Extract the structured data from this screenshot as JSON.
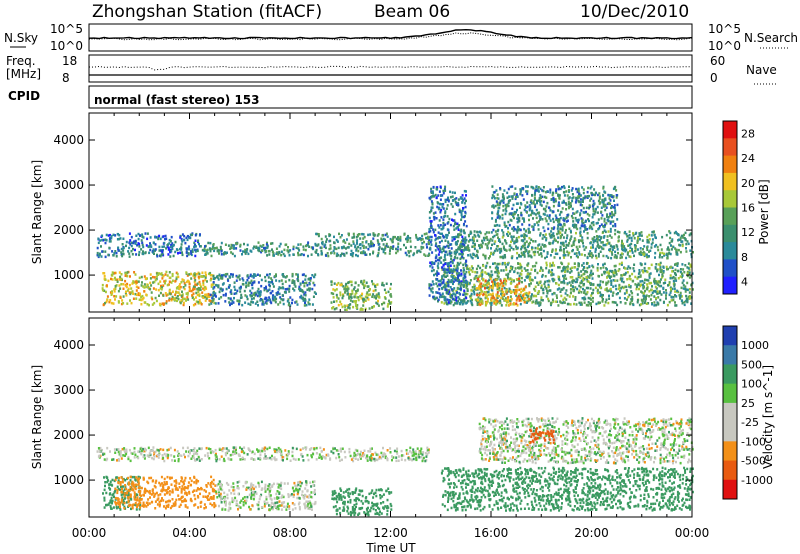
{
  "header": {
    "title": "Zhongshan Station (fitACF)",
    "beam": "Beam 06",
    "date": "10/Dec/2010"
  },
  "noise_panel": {
    "left_label": "N.Sky",
    "right_label": "N.Search",
    "y_ticks": [
      "10^5",
      "10^0"
    ]
  },
  "freq_panel": {
    "left_label_line1": "Freq.",
    "left_label_line2": "[MHz]",
    "left_ticks": [
      "18",
      "8"
    ],
    "right_label": "Nave",
    "right_ticks": [
      "60",
      "0"
    ]
  },
  "cpid_panel": {
    "label": "CPID",
    "mode_text": "normal (fast stereo) 153"
  },
  "colors": {
    "power": [
      "#2020ff",
      "#2050c8",
      "#2a8a9a",
      "#3b8f6e",
      "#58a058",
      "#a8c838",
      "#f0c020",
      "#f08010",
      "#e85020",
      "#e01010"
    ],
    "velocity": [
      "#e01010",
      "#e85a10",
      "#f39018",
      "#c8c8c0",
      "#c8c8c0",
      "#58c040",
      "#3a9a60",
      "#3a7aa8",
      "#2040b0"
    ]
  },
  "chart_data": [
    {
      "type": "heatmap",
      "name": "power",
      "ylabel": "Slant Range [km]",
      "xlabel": "",
      "x_ticks": [
        "00:00",
        "04:00",
        "08:00",
        "12:00",
        "16:00",
        "20:00",
        "00:00"
      ],
      "y_ticks": [
        1000,
        2000,
        3000,
        4000
      ],
      "xlim_hours": [
        0,
        24
      ],
      "ylim_km": [
        180,
        4600
      ],
      "colorbar": {
        "label": "Power [dB]",
        "ticks": [
          "28",
          "24",
          "20",
          "16",
          "12",
          "8",
          "4"
        ],
        "range": [
          0,
          30
        ]
      },
      "scatter_regions": [
        {
          "t0": 0.3,
          "t1": 4.4,
          "r0": 1430,
          "r1": 1950,
          "level": 7
        },
        {
          "t0": 0.5,
          "t1": 5.0,
          "r0": 350,
          "r1": 1100,
          "level": 18
        },
        {
          "t0": 4.4,
          "t1": 9.0,
          "r0": 1450,
          "r1": 1750,
          "level": 10
        },
        {
          "t0": 4.8,
          "t1": 9.0,
          "r0": 350,
          "r1": 1050,
          "level": 8
        },
        {
          "t0": 9.0,
          "t1": 13.5,
          "r0": 1450,
          "r1": 1950,
          "level": 10
        },
        {
          "t0": 9.6,
          "t1": 12.0,
          "r0": 250,
          "r1": 900,
          "level": 14
        },
        {
          "t0": 14.5,
          "t1": 24.0,
          "r0": 1400,
          "r1": 2000,
          "level": 11
        },
        {
          "t0": 14.0,
          "t1": 24.0,
          "r0": 350,
          "r1": 1300,
          "level": 12
        },
        {
          "t0": 15.4,
          "t1": 17.5,
          "r0": 350,
          "r1": 950,
          "level": 21
        },
        {
          "t0": 16.0,
          "t1": 21.0,
          "r0": 2000,
          "r1": 3000,
          "level": 9
        },
        {
          "t0": 13.5,
          "t1": 15.0,
          "r0": 400,
          "r1": 3000,
          "level": 7
        }
      ]
    },
    {
      "type": "heatmap",
      "name": "velocity",
      "ylabel": "Slant Range [km]",
      "xlabel": "Time UT",
      "x_ticks": [
        "00:00",
        "04:00",
        "08:00",
        "12:00",
        "16:00",
        "20:00",
        "00:00"
      ],
      "y_ticks": [
        1000,
        2000,
        3000,
        4000
      ],
      "xlim_hours": [
        0,
        24
      ],
      "ylim_km": [
        180,
        4600
      ],
      "colorbar": {
        "label": "Velocity [m s^-1]",
        "ticks": [
          "1000",
          "500",
          "100",
          "25",
          "-25",
          "-100",
          "-500",
          "-1000"
        ]
      },
      "scatter_regions": [
        {
          "t0": 0.3,
          "t1": 13.5,
          "r0": 1450,
          "r1": 1750,
          "level": 0
        },
        {
          "t0": 0.5,
          "t1": 2.0,
          "r0": 350,
          "r1": 1100,
          "level": 250
        },
        {
          "t0": 1.0,
          "t1": 5.0,
          "r0": 400,
          "r1": 1100,
          "level": -300
        },
        {
          "t0": 5.0,
          "t1": 9.0,
          "r0": 350,
          "r1": 1000,
          "level": 0
        },
        {
          "t0": 9.6,
          "t1": 12.0,
          "r0": 250,
          "r1": 850,
          "level": 250
        },
        {
          "t0": 14.0,
          "t1": 24.0,
          "r0": 350,
          "r1": 1300,
          "level": 250
        },
        {
          "t0": 15.5,
          "t1": 24.0,
          "r0": 1400,
          "r1": 2400,
          "level": 0
        },
        {
          "t0": 17.5,
          "t1": 18.5,
          "r0": 1850,
          "r1": 2200,
          "level": -700
        }
      ]
    }
  ]
}
